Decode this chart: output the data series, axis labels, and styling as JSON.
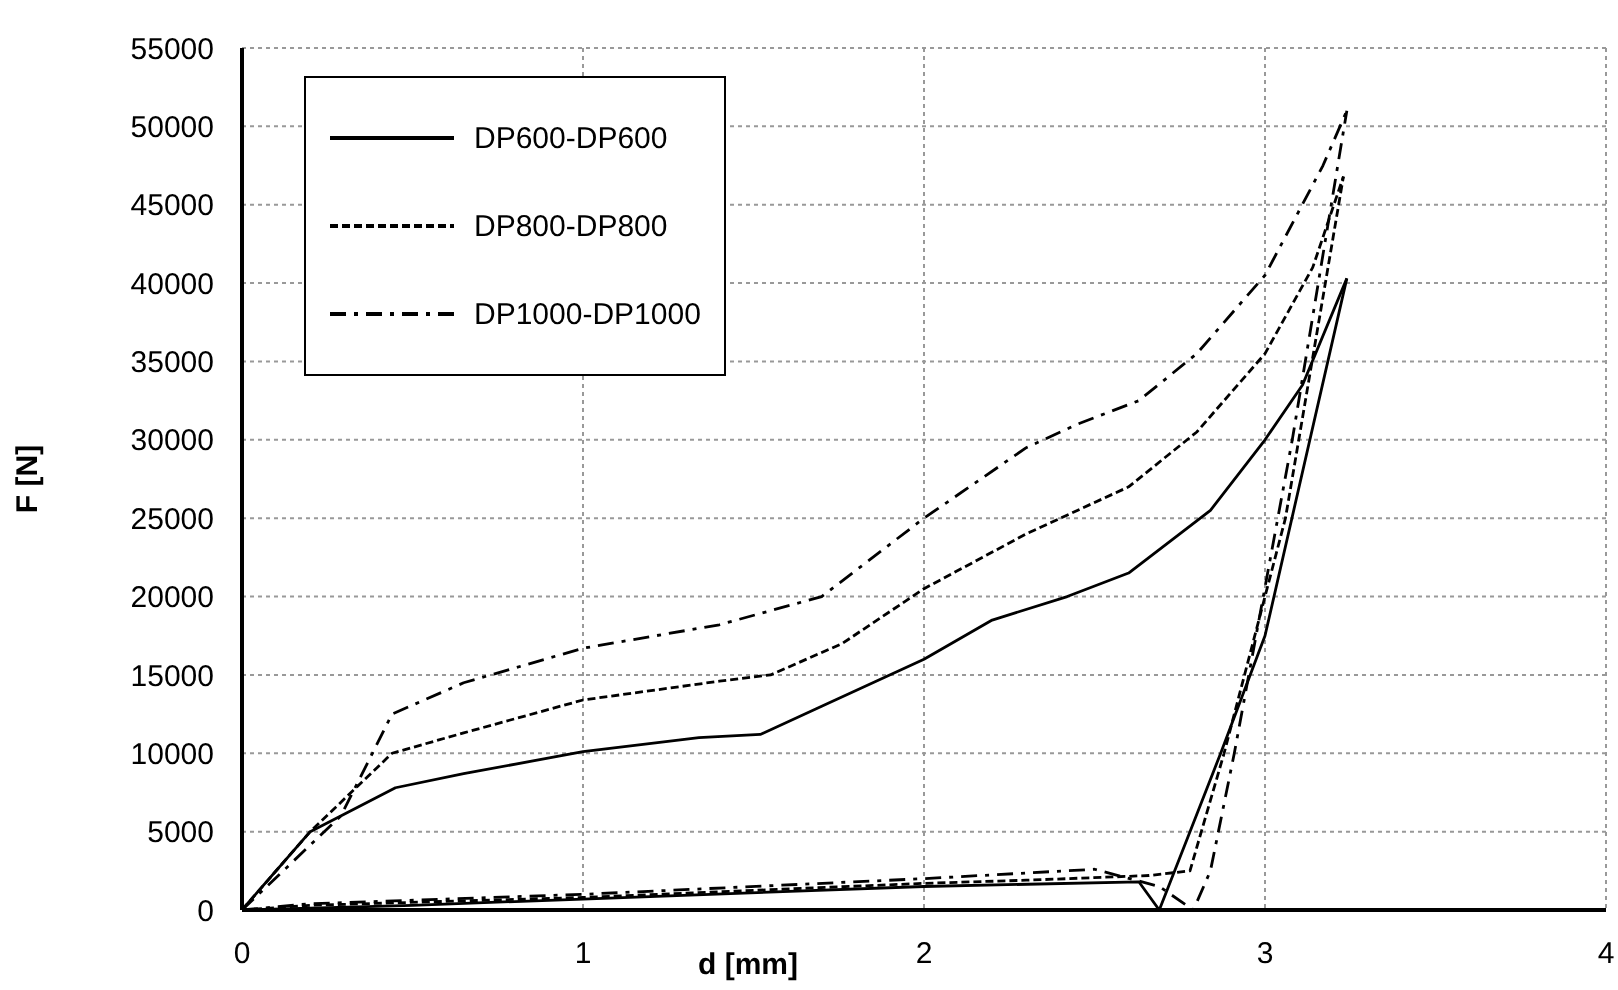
{
  "chart_data": {
    "type": "line",
    "xlabel": "d [mm]",
    "ylabel": "F [N]",
    "xlim": [
      0,
      4
    ],
    "xticks": [
      0,
      1,
      2,
      3,
      4
    ],
    "ylim": [
      0,
      55000
    ],
    "yticks": [
      0,
      5000,
      10000,
      15000,
      20000,
      25000,
      30000,
      35000,
      40000,
      45000,
      50000,
      55000
    ],
    "grid": true,
    "legend": "top left",
    "marker": "none",
    "series": [
      {
        "name": "DP600-DP600",
        "color": "#000000",
        "line_style": "solid",
        "x": [
          0,
          0.2,
          0.45,
          0.65,
          1.0,
          1.34,
          1.52,
          1.7,
          2.0,
          2.2,
          2.42,
          2.6,
          2.84,
          3.0,
          3.11,
          3.24
        ],
        "values": [
          0,
          5000,
          7800,
          8700,
          10100,
          11000,
          11200,
          13000,
          16000,
          18500,
          20000,
          21500,
          25500,
          30000,
          33500,
          40300
        ]
      },
      {
        "name": "DP800-DP800",
        "color": "#000000",
        "line_style": "dashed",
        "x": [
          0,
          0.2,
          0.44,
          0.65,
          1.0,
          1.4,
          1.55,
          1.76,
          2.0,
          2.3,
          2.6,
          2.8,
          3.0,
          3.14,
          3.23
        ],
        "values": [
          0,
          5000,
          10000,
          11300,
          13400,
          14600,
          15000,
          17000,
          20500,
          24000,
          27000,
          30500,
          35500,
          41000,
          46800
        ]
      },
      {
        "name": "DP1000-DP1000",
        "color": "#000000",
        "line_style": "dashdot",
        "x": [
          0,
          0.29,
          0.44,
          0.65,
          1.0,
          1.4,
          1.7,
          2.0,
          2.3,
          2.45,
          2.63,
          2.8,
          3.0,
          3.17,
          3.24
        ],
        "values": [
          0,
          6000,
          12500,
          14500,
          16700,
          18200,
          20000,
          25000,
          29500,
          31000,
          32500,
          35500,
          40500,
          47500,
          51000
        ]
      },
      {
        "color": "#000000",
        "line_style": "solid",
        "x": [
          0,
          0.5,
          1.0,
          2.0,
          2.63,
          2.69,
          2.78,
          2.87,
          3.0,
          3.24
        ],
        "values": [
          0,
          300,
          700,
          1500,
          1800,
          0,
          5000,
          10000,
          17500,
          40300
        ]
      },
      {
        "color": "#000000",
        "line_style": "dashed",
        "x": [
          0,
          0.2,
          1.0,
          2.0,
          2.3,
          2.66,
          2.78,
          2.88,
          3.06,
          3.23
        ],
        "values": [
          0,
          300,
          800,
          1700,
          1900,
          2200,
          2500,
          10000,
          25000,
          46800
        ]
      },
      {
        "color": "#000000",
        "line_style": "dashdot",
        "x": [
          0,
          0.2,
          1.0,
          2.0,
          2.5,
          2.69,
          2.79,
          2.84,
          2.91,
          3.08,
          3.24
        ],
        "values": [
          0,
          400,
          1000,
          2000,
          2600,
          1500,
          0,
          2500,
          10000,
          30000,
          51000
        ]
      }
    ]
  }
}
